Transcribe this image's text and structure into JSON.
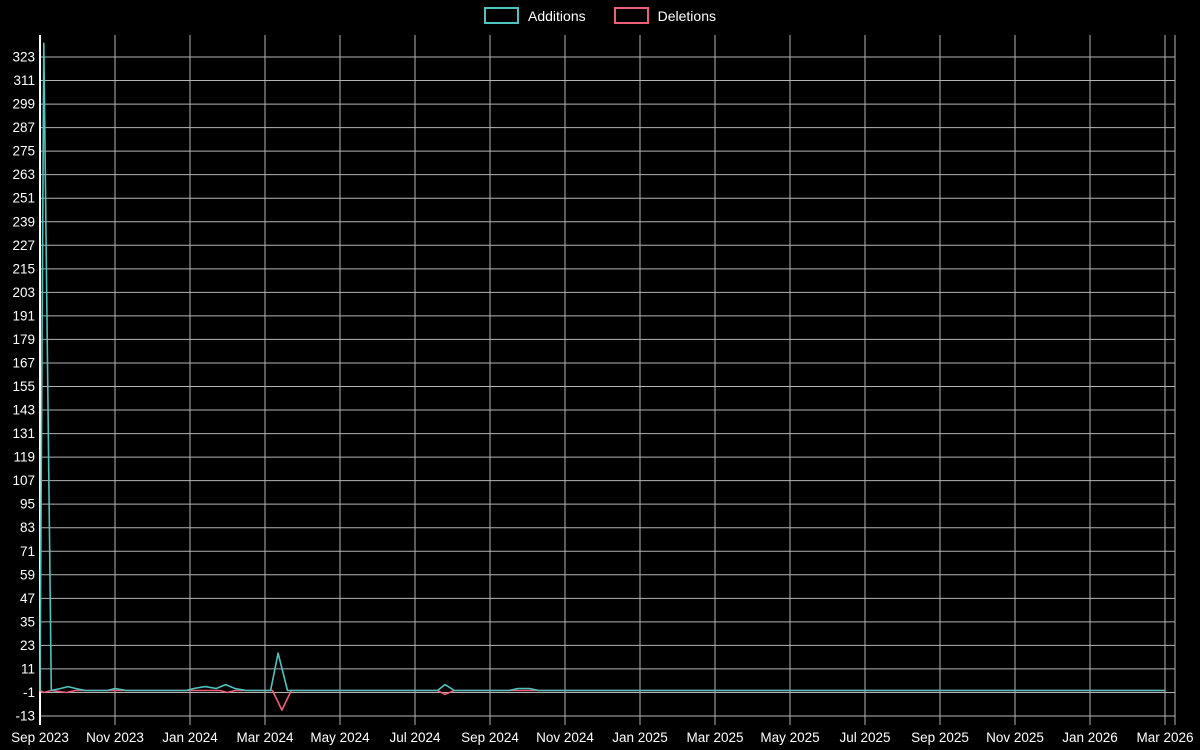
{
  "chart_data": {
    "type": "line",
    "title": "",
    "legend_position": "top-center",
    "grid": true,
    "plot": {
      "background": "#000000",
      "grid_color": "#b3b3b3",
      "axis_color": "#ffffff",
      "text_color": "#ffffff"
    },
    "x_axis": {
      "unit": "months since Sep 2023",
      "range_months": [
        0,
        30
      ],
      "tick_labels": [
        "Sep 2023",
        "Nov 2023",
        "Jan 2024",
        "Mar 2024",
        "May 2024",
        "Jul 2024",
        "Sep 2024",
        "Nov 2024",
        "Jan 2025",
        "Mar 2025",
        "May 2025",
        "Jul 2025",
        "Sep 2025",
        "Nov 2025",
        "Jan 2026",
        "Mar 2026"
      ],
      "tick_month_positions": [
        0,
        2,
        4,
        6,
        8,
        10,
        12,
        14,
        16,
        18,
        20,
        22,
        24,
        26,
        28,
        30
      ]
    },
    "y_axis": {
      "ticks": [
        -13,
        -1,
        11,
        23,
        35,
        47,
        59,
        71,
        83,
        95,
        107,
        119,
        131,
        143,
        155,
        167,
        179,
        191,
        203,
        215,
        227,
        239,
        251,
        263,
        275,
        287,
        299,
        311,
        323
      ],
      "range": [
        -17,
        334
      ]
    },
    "series": [
      {
        "name": "Additions",
        "color": "#4fc3be",
        "points": [
          [
            0,
            0
          ],
          [
            0.1,
            330
          ],
          [
            0.3,
            0
          ],
          [
            0.55,
            1
          ],
          [
            0.75,
            2
          ],
          [
            0.95,
            1
          ],
          [
            1.2,
            0
          ],
          [
            1.8,
            0
          ],
          [
            2.0,
            1
          ],
          [
            2.3,
            0
          ],
          [
            3.9,
            0
          ],
          [
            4.1,
            1
          ],
          [
            4.4,
            2
          ],
          [
            4.7,
            1
          ],
          [
            4.95,
            3
          ],
          [
            5.2,
            1
          ],
          [
            5.5,
            0
          ],
          [
            6.15,
            0
          ],
          [
            6.35,
            19
          ],
          [
            6.6,
            0
          ],
          [
            10.6,
            0
          ],
          [
            10.8,
            3
          ],
          [
            11.05,
            0
          ],
          [
            12.5,
            0
          ],
          [
            12.75,
            1
          ],
          [
            13.05,
            1
          ],
          [
            13.3,
            0
          ],
          [
            30,
            0
          ]
        ]
      },
      {
        "name": "Deletions",
        "color": "#ec5f76",
        "points": [
          [
            0,
            0
          ],
          [
            0.1,
            -1
          ],
          [
            0.3,
            0
          ],
          [
            0.7,
            -1
          ],
          [
            0.95,
            0
          ],
          [
            4.8,
            0
          ],
          [
            5.0,
            -1
          ],
          [
            5.2,
            0
          ],
          [
            6.2,
            0
          ],
          [
            6.45,
            -10
          ],
          [
            6.7,
            0
          ],
          [
            10.6,
            0
          ],
          [
            10.8,
            -2
          ],
          [
            11.05,
            0
          ],
          [
            30,
            0
          ]
        ]
      }
    ]
  }
}
